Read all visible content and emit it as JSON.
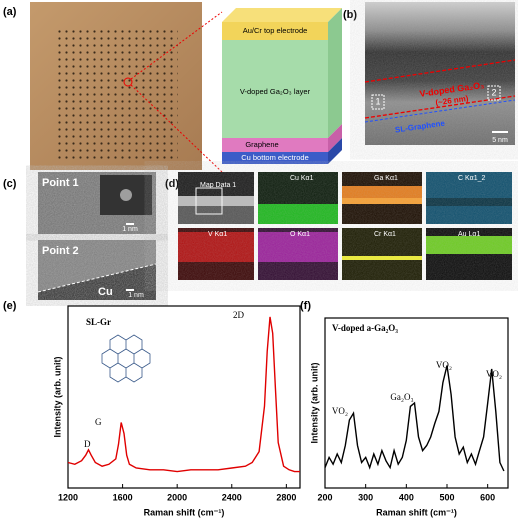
{
  "panels": {
    "a": "(a)",
    "b": "(b)",
    "c": "(c)",
    "d": "(d)",
    "e": "(e)",
    "f": "(f)"
  },
  "device": {
    "layers": [
      "Au/Cr top electrode",
      "V-doped Ga₂O₃ layer",
      "Graphene",
      "Cu bottom electrode"
    ]
  },
  "tem": {
    "layer_label": "V-doped Ga₂O₃",
    "thickness": "(~26 nm)",
    "graphene": "SL-Graphene",
    "scale": "5 nm",
    "point_1": "1",
    "point_2": "2"
  },
  "hrtem": {
    "point_1": "Point 1",
    "scale_1": "1 nm",
    "point_2": "Point 2",
    "substrate": "Cu",
    "scale_2": "1 nm"
  },
  "eds": {
    "overview": "Map Data 1",
    "maps": [
      "Cu Kα1",
      "Ga Kα1",
      "C Kα1_2",
      "V Kα1",
      "O Kα1",
      "Cr Kα1",
      "Au Lα1"
    ]
  },
  "chart_data": [
    {
      "type": "line",
      "annotations": [
        "SL-Gr",
        "D",
        "G",
        "2D"
      ],
      "x_label": "Raman shift (cm⁻¹)",
      "y_label": "Intensity (arb. unit)",
      "color": "#e00000",
      "x": [
        1200,
        1250,
        1300,
        1330,
        1350,
        1370,
        1400,
        1450,
        1500,
        1550,
        1570,
        1590,
        1610,
        1630,
        1650,
        1700,
        1800,
        1900,
        2000,
        2100,
        2200,
        2300,
        2400,
        2500,
        2550,
        2600,
        2640,
        2660,
        2680,
        2700,
        2720,
        2740,
        2780,
        2820,
        2860,
        2900
      ],
      "values": [
        14,
        13,
        15,
        18,
        21,
        18,
        14,
        12,
        13,
        16,
        24,
        36,
        30,
        18,
        13,
        11,
        10,
        10,
        9,
        10,
        10,
        10,
        11,
        12,
        14,
        20,
        45,
        75,
        94,
        85,
        55,
        25,
        12,
        10,
        9,
        9
      ],
      "xlim": [
        1200,
        2900
      ],
      "ylim": [
        0,
        100
      ],
      "xticks": [
        1200,
        1600,
        2000,
        2400,
        2800
      ]
    },
    {
      "type": "line",
      "annotations": [
        "V-doped a-Ga₂O₃",
        "VO₂",
        "Ga₂O₃",
        "VO₂",
        "VO₂"
      ],
      "x_label": "Raman shift (cm⁻¹)",
      "y_label": "Intensity (arb. unit)",
      "color": "#000000",
      "x": [
        200,
        210,
        220,
        230,
        240,
        250,
        260,
        270,
        280,
        290,
        300,
        310,
        320,
        330,
        340,
        350,
        360,
        370,
        380,
        390,
        400,
        410,
        420,
        430,
        440,
        450,
        460,
        470,
        480,
        490,
        500,
        510,
        520,
        530,
        540,
        550,
        560,
        570,
        580,
        590,
        600,
        610,
        620,
        630,
        640
      ],
      "values": [
        12,
        18,
        14,
        20,
        15,
        25,
        40,
        44,
        25,
        15,
        18,
        12,
        20,
        14,
        22,
        16,
        12,
        22,
        14,
        18,
        28,
        48,
        50,
        30,
        22,
        25,
        30,
        38,
        45,
        62,
        72,
        55,
        30,
        20,
        24,
        15,
        20,
        14,
        22,
        30,
        50,
        70,
        45,
        15,
        10
      ],
      "xlim": [
        200,
        650
      ],
      "ylim": [
        0,
        100
      ],
      "xticks": [
        200,
        300,
        400,
        500,
        600
      ]
    }
  ]
}
